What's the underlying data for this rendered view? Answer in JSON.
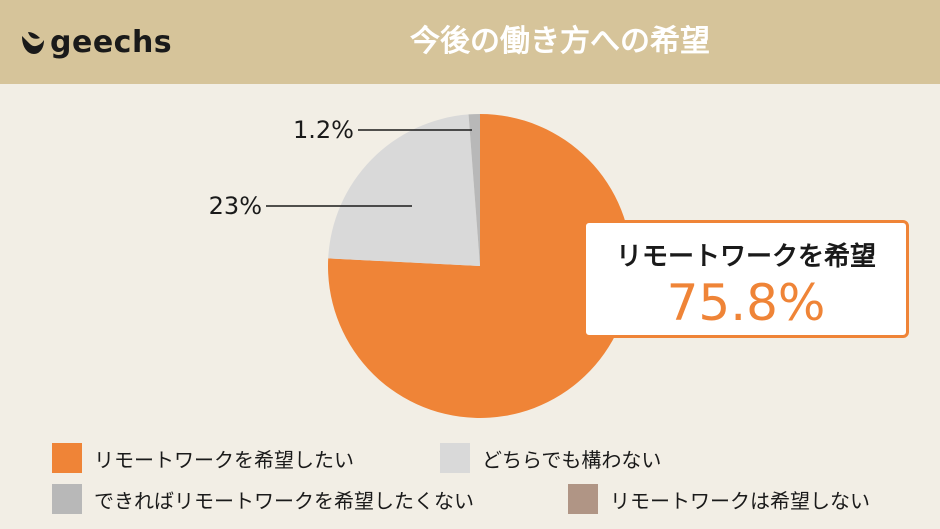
{
  "header": {
    "logo_text": "geechs",
    "title": "今後の働き方への希望"
  },
  "callout": {
    "label": "リモートワークを希望",
    "value": "75.8%"
  },
  "colors": {
    "header_bg": "#d6c49a",
    "page_bg": "#f2eee5",
    "accent": "#ef8437"
  },
  "chart_data": {
    "type": "pie",
    "title": "今後の働き方への希望",
    "slices": [
      {
        "label": "リモートワークを希望したい",
        "value": 75.8,
        "display": "",
        "color": "#ef8437"
      },
      {
        "label": "どちらでも構わない",
        "value": 23,
        "display": "23%",
        "color": "#d9d9d9"
      },
      {
        "label": "できればリモートワークを希望したくない",
        "value": 1.2,
        "display": "1.2%",
        "color": "#b8b8b8"
      },
      {
        "label": "リモートワークは希望しない",
        "value": 0,
        "display": "",
        "color": "#b09585"
      }
    ],
    "legend_position": "bottom"
  },
  "legend": [
    {
      "label": "リモートワークを希望したい",
      "color": "#ef8437"
    },
    {
      "label": "どちらでも構わない",
      "color": "#d9d9d9"
    },
    {
      "label": "できればリモートワークを希望したくない",
      "color": "#b8b8b8"
    },
    {
      "label": "リモートワークは希望しない",
      "color": "#b09585"
    }
  ]
}
